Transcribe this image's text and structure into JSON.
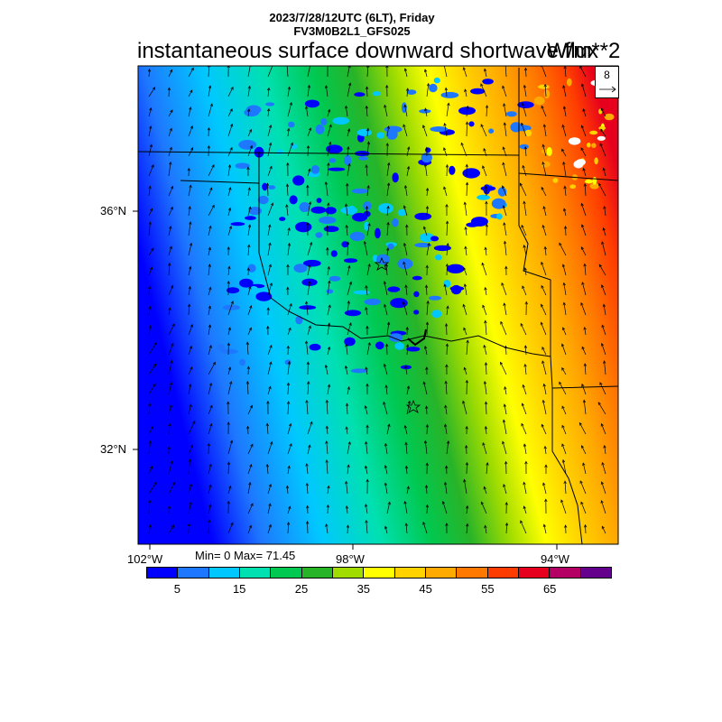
{
  "header": {
    "line1": "2023/7/28/12UTC (6LT), Friday",
    "line2": "FV3M0B2L1_GFS025",
    "title": "instantaneous surface downward shortwave flux",
    "units": "W/m**2"
  },
  "vector_reference": {
    "value": "8"
  },
  "lat_labels": [
    "36°N",
    "32°N"
  ],
  "lon_labels": [
    "102°W",
    "98°W",
    "94°W"
  ],
  "stats": {
    "text": "Min= 0 Max= 71.45"
  },
  "colorbar": {
    "colors": [
      "#0000ff",
      "#1e78ff",
      "#00c8ff",
      "#00e0b0",
      "#00c850",
      "#28b428",
      "#a0dc00",
      "#ffff00",
      "#ffd200",
      "#ffaa00",
      "#ff7800",
      "#ff3c00",
      "#e6001e",
      "#b40064",
      "#64008c"
    ],
    "labels": [
      "5",
      "15",
      "25",
      "35",
      "45",
      "55",
      "65"
    ]
  }
}
